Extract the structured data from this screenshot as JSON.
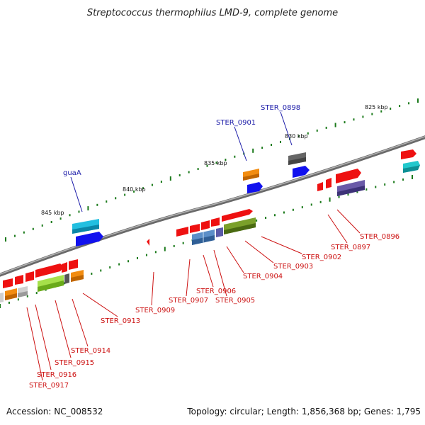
{
  "title": "Streptococcus thermophilus LMD-9, complete genome",
  "footer": {
    "accession": "Accession: NC_008532",
    "topology": "Topology: circular; Length: 1,856,368 bp; Genes: 1,795"
  },
  "colors": {
    "backbone": "#8a8a8a",
    "tick": "#1b7a1b",
    "label_top": "#1a1aa8",
    "label_bottom": "#cc1111"
  },
  "ticks": [
    "825 kbp",
    "830 kbp",
    "835 kbp",
    "840 kbp",
    "845 kbp"
  ],
  "labels_top": [
    "STER_0898",
    "STER_0901",
    "guaA"
  ],
  "labels_bottom": [
    "STER_0896",
    "STER_0897",
    "STER_0902",
    "STER_0903",
    "STER_0904",
    "STER_0905",
    "STER_0906",
    "STER_0907",
    "STER_0909",
    "STER_0913",
    "STER_0914",
    "STER_0915",
    "STER_0916",
    "STER_0917"
  ]
}
